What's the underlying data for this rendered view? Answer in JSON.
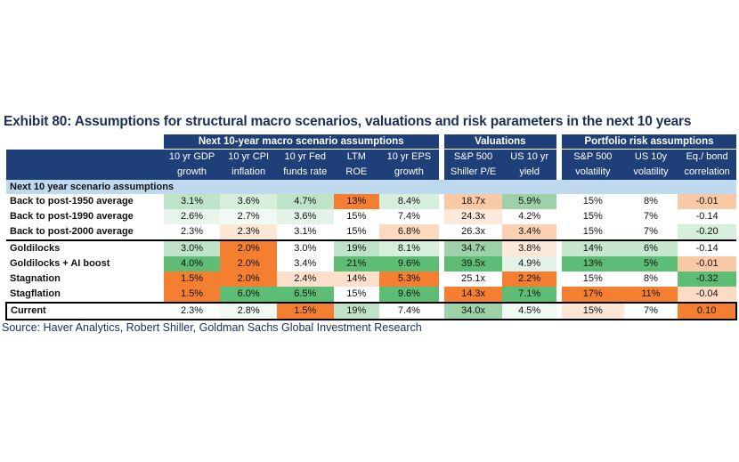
{
  "title": "Exhibit 80: Assumptions for structural macro scenarios, valuations and risk parameters in the next 10 years",
  "groups": [
    "Next 10-year macro scenario assumptions",
    "Valuations",
    "Portfolio risk assumptions"
  ],
  "columns": [
    {
      "line1": "10 yr GDP",
      "line2": "growth"
    },
    {
      "line1": "10 yr CPI",
      "line2": "inflation"
    },
    {
      "line1": "10 yr Fed",
      "line2": "funds rate"
    },
    {
      "line1": "LTM",
      "line2": "ROE"
    },
    {
      "line1": "10 yr EPS",
      "line2": "growth"
    },
    {
      "line1": "S&P 500",
      "line2": "Shiller P/E"
    },
    {
      "line1": "US 10 yr",
      "line2": "yield"
    },
    {
      "line1": "S&P 500",
      "line2": "volatility"
    },
    {
      "line1": "US 10y",
      "line2": "volatility"
    },
    {
      "line1": "Eq./ bond",
      "line2": "correlation"
    }
  ],
  "section_label": "Next 10 year scenario assumptions",
  "rows": [
    {
      "label": "Back to post-1950 average",
      "cells": [
        "3.1%",
        "3.6%",
        "4.7%",
        "13%",
        "8.4%",
        "18.7x",
        "5.9%",
        "15%",
        "8%",
        "-0.01"
      ],
      "colors": [
        "#bfe3c8",
        "#d6eedc",
        "#bfe3c8",
        "#f47f30",
        "#d6eedc",
        "#f9c9a6",
        "#9dd2a9",
        "#ffffff",
        "#ffffff",
        "#f9c9a6"
      ]
    },
    {
      "label": "Back to post-1990 average",
      "cells": [
        "2.6%",
        "2.7%",
        "3.6%",
        "15%",
        "7.4%",
        "24.3x",
        "4.2%",
        "15%",
        "7%",
        "-0.14"
      ],
      "colors": [
        "#e8f5eb",
        "#f1f9f3",
        "#e4f3e7",
        "#ffffff",
        "#ffffff",
        "#fde9da",
        "#ffffff",
        "#ffffff",
        "#ffffff",
        "#ffffff"
      ]
    },
    {
      "label": "Back to post-2000 average",
      "cells": [
        "2.3%",
        "2.3%",
        "3.1%",
        "15%",
        "6.8%",
        "26.3x",
        "3.4%",
        "15%",
        "7%",
        "-0.20"
      ],
      "colors": [
        "#ffffff",
        "#fde6d6",
        "#ffffff",
        "#ffffff",
        "#fcd9bf",
        "#ffffff",
        "#fcd1b2",
        "#ffffff",
        "#ffffff",
        "#d6eedc"
      ]
    },
    {
      "label": "Goldilocks",
      "cells": [
        "3.0%",
        "2.0%",
        "3.0%",
        "19%",
        "8.1%",
        "34.7x",
        "3.8%",
        "14%",
        "6%",
        "-0.14"
      ],
      "colors": [
        "#bfe3c8",
        "#f47f30",
        "#ffffff",
        "#bfe3c8",
        "#d6eedc",
        "#9dd2a9",
        "#fde9da",
        "#c8e7cf",
        "#c8e7cf",
        "#ffffff"
      ]
    },
    {
      "label": "Goldilocks + AI boost",
      "cells": [
        "4.0%",
        "2.0%",
        "3.4%",
        "21%",
        "9.6%",
        "39.5x",
        "4.9%",
        "13%",
        "5%",
        "-0.01"
      ],
      "colors": [
        "#5ebd74",
        "#f47f30",
        "#ffffff",
        "#5ebd74",
        "#5ebd74",
        "#5ebd74",
        "#e4f3e7",
        "#5ebd74",
        "#5ebd74",
        "#f9c9a6"
      ]
    },
    {
      "label": "Stagnation",
      "cells": [
        "1.5%",
        "2.0%",
        "2.4%",
        "14%",
        "5.3%",
        "25.1x",
        "2.2%",
        "15%",
        "8%",
        "-0.32"
      ],
      "colors": [
        "#f47f30",
        "#f47f30",
        "#fde0cb",
        "#fde0cb",
        "#f47f30",
        "#ffffff",
        "#f47f30",
        "#ffffff",
        "#ffffff",
        "#5ebd74"
      ]
    },
    {
      "label": "Stagflation",
      "cells": [
        "1.5%",
        "6.0%",
        "6.5%",
        "15%",
        "9.6%",
        "14.3x",
        "7.1%",
        "17%",
        "11%",
        "-0.04"
      ],
      "colors": [
        "#f47f30",
        "#5ebd74",
        "#5ebd74",
        "#ffffff",
        "#5ebd74",
        "#f47f30",
        "#5ebd74",
        "#f47f30",
        "#f47f30",
        "#fbdcc5"
      ]
    }
  ],
  "current": {
    "label": "Current",
    "cells": [
      "2.3%",
      "2.8%",
      "1.5%",
      "19%",
      "7.4%",
      "34.0x",
      "4.5%",
      "15%",
      "7%",
      "0.10"
    ],
    "colors": [
      "#ffffff",
      "#f1f9f3",
      "#f47f30",
      "#bfe3c8",
      "#ffffff",
      "#9dd2a9",
      "#f1f9f3",
      "#fde6d6",
      "#ffffff",
      "#f47f30"
    ]
  },
  "source": "Source: Haver Analytics, Robert Shiller, Goldman Sachs Global Investment Research"
}
